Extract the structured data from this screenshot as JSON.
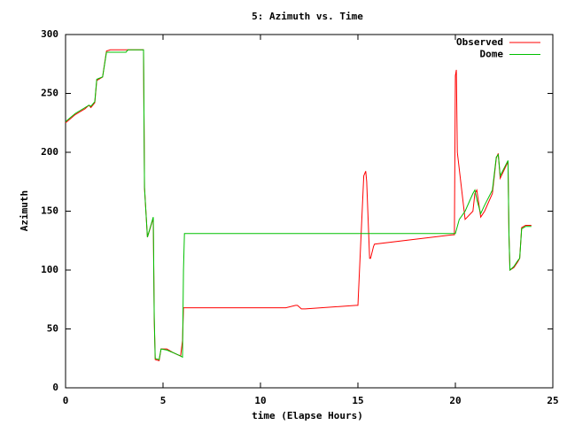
{
  "chart_data": {
    "type": "line",
    "title": "5: Azimuth vs. Time",
    "xlabel": "time (Elapse Hours)",
    "ylabel": "Azimuth",
    "xlim": [
      0,
      25
    ],
    "xticks": [
      0,
      5,
      10,
      15,
      20,
      25
    ],
    "ylim": [
      0,
      300
    ],
    "yticks": [
      0,
      50,
      100,
      150,
      200,
      250,
      300
    ],
    "grid": false,
    "legend": "top-right",
    "series": [
      {
        "name": "Observed",
        "color": "#ff0000",
        "x": [
          0,
          0.5,
          1.0,
          1.2,
          1.3,
          1.5,
          1.6,
          1.9,
          2.1,
          2.3,
          3.2,
          4.0,
          4.05,
          4.2,
          4.5,
          4.55,
          4.6,
          4.8,
          4.9,
          5.2,
          5.5,
          5.9,
          6.0,
          6.05,
          11.3,
          11.8,
          11.9,
          12.1,
          12.3,
          14.9,
          15.0,
          15.3,
          15.4,
          15.45,
          15.6,
          15.65,
          15.8,
          15.85,
          19.9,
          19.95,
          20.0,
          20.05,
          20.1,
          20.5,
          20.9,
          21.0,
          21.1,
          21.3,
          21.5,
          21.9,
          22.1,
          22.2,
          22.3,
          22.7,
          22.75,
          22.8,
          23.0,
          23.2,
          23.3,
          23.4,
          23.6,
          23.9
        ],
        "values": [
          225,
          232,
          237,
          240,
          238,
          242,
          261,
          264,
          286,
          287,
          287,
          287,
          170,
          128,
          144,
          58,
          24,
          23,
          33,
          33,
          30,
          27,
          40,
          68,
          68,
          70,
          70,
          67,
          67,
          70,
          70,
          180,
          184,
          175,
          110,
          110,
          120,
          122,
          130,
          130,
          265,
          270,
          200,
          143,
          150,
          165,
          168,
          145,
          150,
          165,
          195,
          199,
          178,
          192,
          130,
          100,
          102,
          107,
          110,
          136,
          138,
          138
        ]
      },
      {
        "name": "Dome",
        "color": "#00c000",
        "x": [
          0,
          0.5,
          1.0,
          1.2,
          1.3,
          1.5,
          1.6,
          1.9,
          2.1,
          2.3,
          3.1,
          3.2,
          4.0,
          4.05,
          4.2,
          4.5,
          4.55,
          4.6,
          4.8,
          4.9,
          5.2,
          5.5,
          5.9,
          6.0,
          6.05,
          6.1,
          20.0,
          20.2,
          20.5,
          20.9,
          21.0,
          21.1,
          21.3,
          21.5,
          21.9,
          22.1,
          22.2,
          22.3,
          22.7,
          22.75,
          22.8,
          23.0,
          23.2,
          23.3,
          23.4,
          23.6,
          23.9
        ],
        "values": [
          226,
          233,
          238,
          240,
          239,
          243,
          262,
          264,
          285,
          285,
          285,
          287,
          287,
          170,
          128,
          145,
          60,
          25,
          24,
          33,
          32,
          30,
          27,
          26,
          100,
          131,
          131,
          143,
          150,
          165,
          168,
          160,
          148,
          155,
          168,
          196,
          198,
          180,
          193,
          130,
          100,
          103,
          108,
          110,
          135,
          137,
          137
        ]
      }
    ]
  }
}
